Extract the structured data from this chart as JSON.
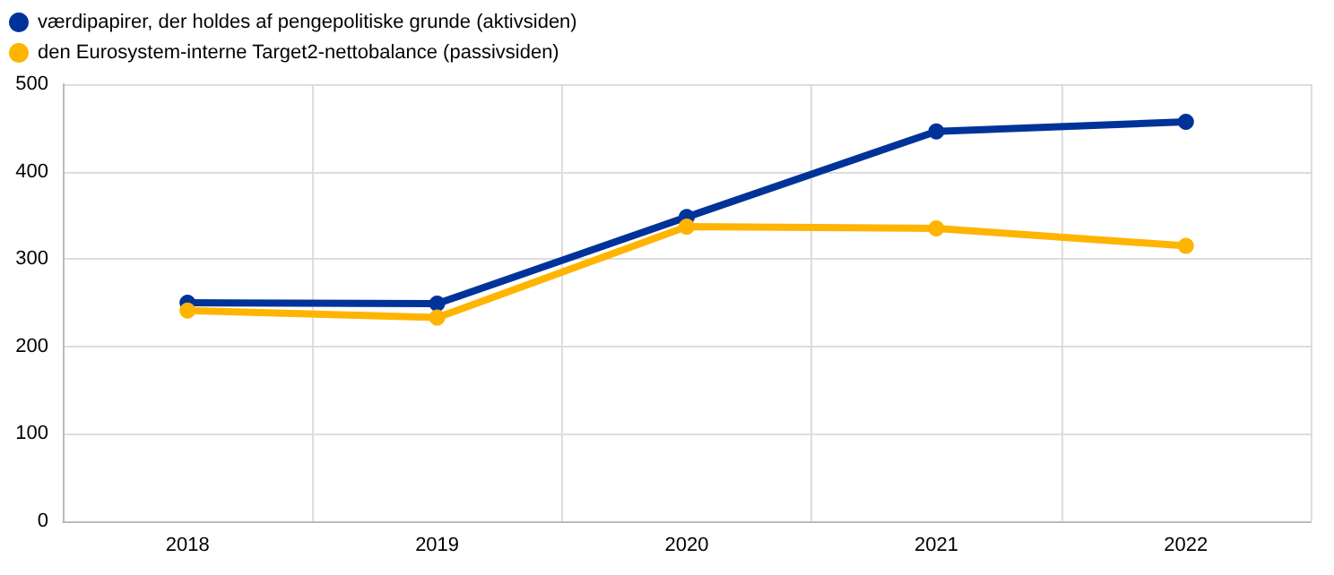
{
  "chart_data": {
    "type": "line",
    "categories": [
      "2018",
      "2019",
      "2020",
      "2021",
      "2022"
    ],
    "series": [
      {
        "name": "værdipapirer, der holdes af pengepolitiske grunde (aktivsiden)",
        "color": "#003399",
        "values": [
          250,
          249,
          348,
          446,
          457
        ]
      },
      {
        "name": "den Eurosystem-interne Target2-nettobalance (passivsiden)",
        "color": "#ffb400",
        "values": [
          241,
          233,
          337,
          335,
          315
        ]
      }
    ],
    "ylim": [
      0,
      500
    ],
    "yticks": [
      0,
      100,
      200,
      300,
      400,
      500
    ],
    "grid": true,
    "legend": "top left",
    "marker": "circle",
    "line_style": "solid"
  }
}
